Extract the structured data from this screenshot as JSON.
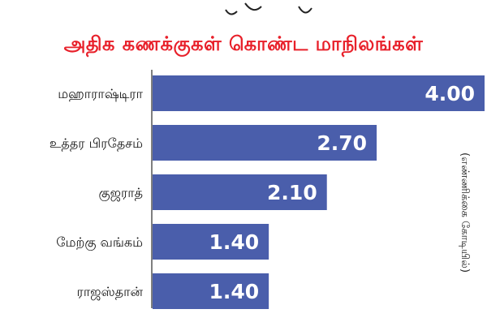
{
  "colors": {
    "bar": "#4a5eab",
    "title": "#e8202a",
    "axis": "#555555",
    "value_text": "#ffffff",
    "label_text": "#111111"
  },
  "chart_data": {
    "type": "bar",
    "orientation": "horizontal",
    "title": "அதிக கணக்குகள் கொண்ட மாநிலங்கள்",
    "unit_label": "(எண்ணிக்கை கோடியில்)",
    "categories": [
      "மஹாராஷ்டிரா",
      "உத்தர பிரதேசம்",
      "குஜராத்",
      "மேற்கு வங்கம்",
      "ராஜஸ்தான்"
    ],
    "values": [
      4.0,
      2.7,
      2.1,
      1.4,
      1.4
    ],
    "value_labels": [
      "4.00",
      "2.70",
      "2.10",
      "1.40",
      "1.40"
    ],
    "xlim": [
      0,
      4.0
    ],
    "grid": false,
    "legend": "none"
  }
}
